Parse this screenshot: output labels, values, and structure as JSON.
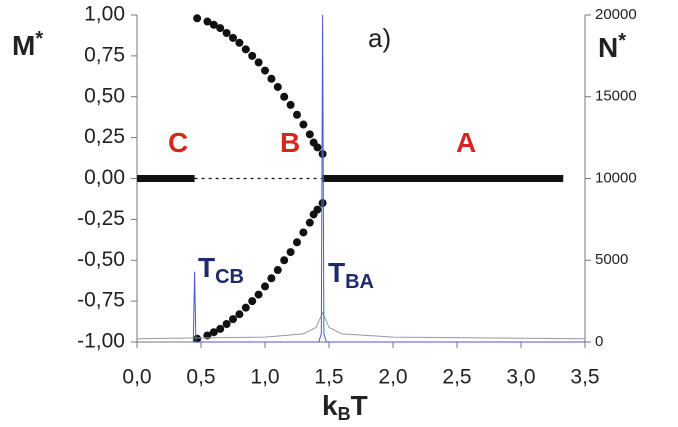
{
  "chart_data": {
    "type": "scatter",
    "y_label": {
      "main": "M",
      "sup": "*"
    },
    "y2_label": {
      "main": "N",
      "sup": "*"
    },
    "x_label": {
      "main": "k",
      "sub": "B",
      "tail": "T"
    },
    "panel_label": "a)",
    "annotations": [
      {
        "text": "C",
        "color": "#d7261e"
      },
      {
        "text": "B",
        "color": "#d7261e"
      },
      {
        "text": "A",
        "color": "#d7261e"
      },
      {
        "text": "T",
        "sub": "CB",
        "color": "#1f2a6b"
      },
      {
        "text": "T",
        "sub": "BA",
        "color": "#1f2a6b"
      }
    ],
    "xlim": [
      0,
      3.5
    ],
    "xticks": [
      {
        "value": 0,
        "label": "0,0"
      },
      {
        "value": 0.5,
        "label": "0,5"
      },
      {
        "value": 1,
        "label": "1,0"
      },
      {
        "value": 1.5,
        "label": "1,5"
      },
      {
        "value": 2,
        "label": "2,0"
      },
      {
        "value": 2.5,
        "label": "2,5"
      },
      {
        "value": 3,
        "label": "3,0"
      },
      {
        "value": 3.5,
        "label": "3,5"
      }
    ],
    "ylim": [
      -1,
      1
    ],
    "yticks": [
      {
        "value": -1,
        "label": "-1,00"
      },
      {
        "value": -0.75,
        "label": "-0,75"
      },
      {
        "value": -0.5,
        "label": "-0,50"
      },
      {
        "value": -0.25,
        "label": "-0,25"
      },
      {
        "value": 0,
        "label": "0,00"
      },
      {
        "value": 0.25,
        "label": "0,25"
      },
      {
        "value": 0.5,
        "label": "0,50"
      },
      {
        "value": 0.75,
        "label": "0,75"
      },
      {
        "value": 1,
        "label": "1,00"
      }
    ],
    "y2lim": [
      0,
      20000
    ],
    "y2ticks": [
      0,
      5000,
      10000,
      15000,
      20000
    ],
    "series": [
      {
        "kind": "dots",
        "color": "#111111",
        "x": [
          0.47,
          0.55,
          0.6,
          0.65,
          0.7,
          0.75,
          0.8,
          0.85,
          0.9,
          0.95,
          1.0,
          1.05,
          1.1,
          1.15,
          1.2,
          1.25,
          1.3,
          1.35,
          1.38,
          1.41,
          1.45
        ],
        "values": [
          0.98,
          0.96,
          0.94,
          0.92,
          0.89,
          0.86,
          0.83,
          0.79,
          0.75,
          0.71,
          0.66,
          0.61,
          0.56,
          0.5,
          0.45,
          0.39,
          0.33,
          0.27,
          0.22,
          0.19,
          0.15
        ]
      },
      {
        "kind": "dots",
        "color": "#111111",
        "x": [
          0.47,
          0.55,
          0.6,
          0.65,
          0.7,
          0.75,
          0.8,
          0.85,
          0.9,
          0.95,
          1.0,
          1.05,
          1.1,
          1.15,
          1.2,
          1.25,
          1.3,
          1.35,
          1.38,
          1.41,
          1.45
        ],
        "values": [
          -0.98,
          -0.96,
          -0.94,
          -0.92,
          -0.89,
          -0.86,
          -0.83,
          -0.79,
          -0.75,
          -0.71,
          -0.66,
          -0.61,
          -0.56,
          -0.5,
          -0.45,
          -0.39,
          -0.33,
          -0.27,
          -0.22,
          -0.19,
          -0.15
        ]
      },
      {
        "kind": "thick",
        "color": "#111111",
        "x": [
          0,
          0.45
        ],
        "values": [
          0,
          0
        ]
      },
      {
        "kind": "dotted",
        "color": "#111111",
        "x": [
          0.45,
          1.45
        ],
        "values": [
          0,
          0
        ]
      },
      {
        "kind": "thick",
        "color": "#111111",
        "x": [
          1.45,
          3.33
        ],
        "values": [
          0,
          0
        ]
      },
      {
        "kind": "thin",
        "axis": "y2",
        "color": "#999999",
        "x": [
          0,
          0.5,
          1.0,
          1.3,
          1.4,
          1.45,
          1.5,
          1.6,
          2.0,
          3.5
        ],
        "values": [
          200,
          250,
          300,
          500,
          900,
          1800,
          900,
          500,
          300,
          200
        ]
      },
      {
        "kind": "thin",
        "axis": "y2",
        "color": "#4a5bd0",
        "x": [
          0.44,
          0.45,
          0.46,
          1.42,
          1.44,
          1.45,
          1.46,
          1.48,
          3.5
        ],
        "values": [
          0,
          4300,
          0,
          0,
          500,
          20000,
          500,
          0,
          0
        ]
      }
    ]
  }
}
